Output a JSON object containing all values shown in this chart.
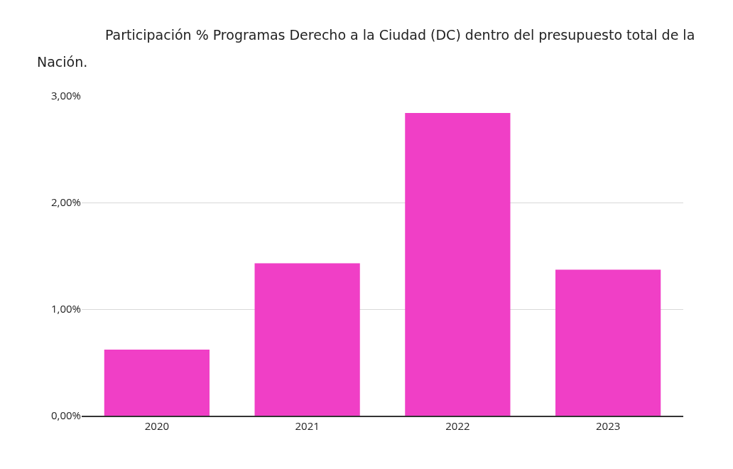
{
  "chart_data": {
    "type": "bar",
    "title": "Participación % Programas Derecho a la Ciudad (DC) dentro del presupuesto total de la Nación.",
    "categories": [
      "2020",
      "2021",
      "2022",
      "2023"
    ],
    "values": [
      0.62,
      1.43,
      2.84,
      1.37
    ],
    "color": "#f03fc6",
    "ylim": [
      0,
      3
    ],
    "yticks": [
      {
        "value": 0,
        "label": "0,00%"
      },
      {
        "value": 1,
        "label": "1,00%"
      },
      {
        "value": 2,
        "label": "2,00%"
      },
      {
        "value": 3,
        "label": "3,00%"
      }
    ],
    "grid": "y"
  }
}
